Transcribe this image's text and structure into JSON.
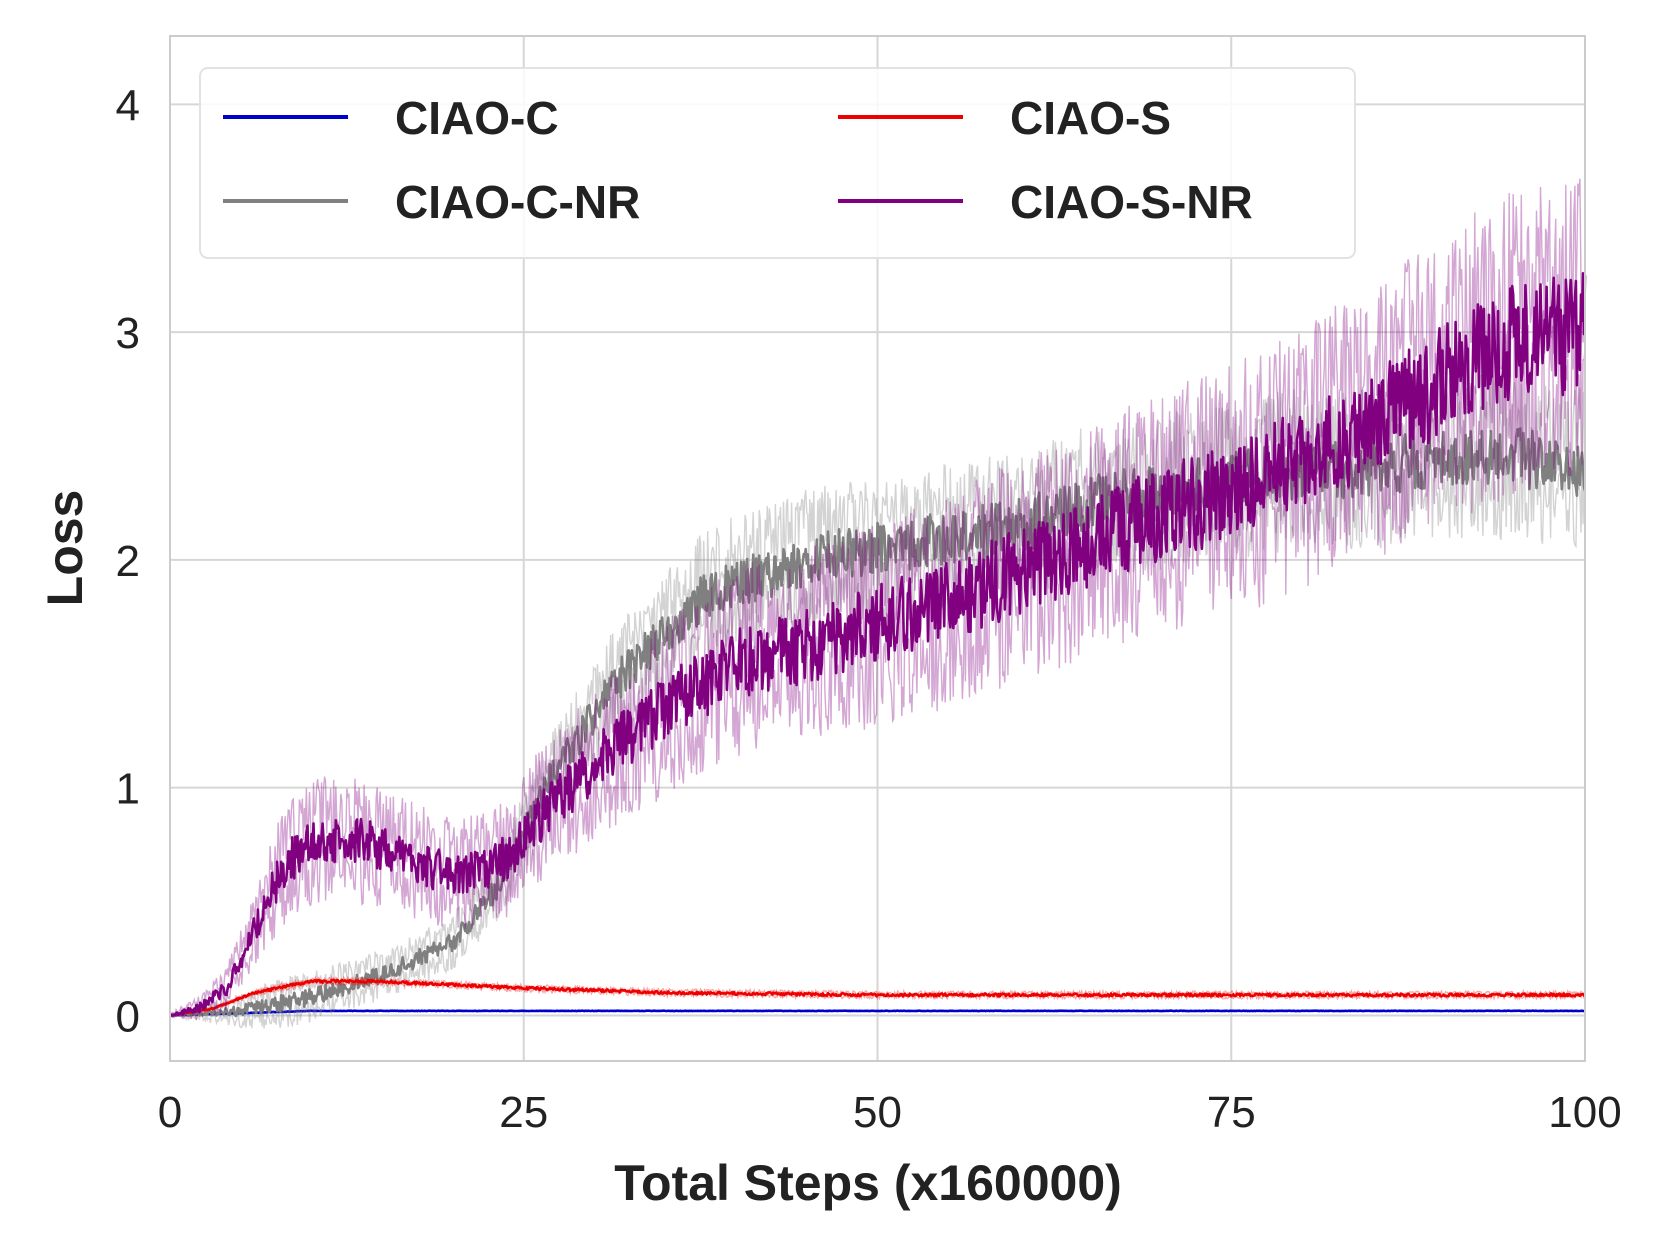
{
  "chart_data": {
    "type": "line",
    "title": "",
    "xlabel": "Total Steps (x160000)",
    "ylabel": "Loss",
    "xlim": [
      0,
      100
    ],
    "ylim": [
      -0.2,
      4.3
    ],
    "xticks": [
      0,
      25,
      50,
      75,
      100
    ],
    "yticks": [
      0,
      1,
      2,
      3,
      4
    ],
    "xtick_labels": [
      "0",
      "25",
      "50",
      "75",
      "100"
    ],
    "ytick_labels": [
      "0",
      "1",
      "2",
      "3",
      "4"
    ],
    "grid": true,
    "legend_position": "top-left",
    "series": [
      {
        "name": "CIAO-C",
        "color": "#0000cc",
        "x": [
          0,
          5,
          10,
          20,
          30,
          40,
          50,
          60,
          70,
          80,
          90,
          100
        ],
        "values": [
          0.0,
          0.01,
          0.02,
          0.02,
          0.02,
          0.02,
          0.02,
          0.02,
          0.02,
          0.02,
          0.02,
          0.02
        ],
        "noise": 0.002,
        "band": 0.003
      },
      {
        "name": "CIAO-S",
        "color": "#ee0000",
        "x": [
          0,
          3,
          6,
          10,
          14,
          18,
          25,
          35,
          50,
          60,
          75,
          90,
          100
        ],
        "values": [
          0.0,
          0.03,
          0.1,
          0.15,
          0.15,
          0.14,
          0.12,
          0.1,
          0.09,
          0.09,
          0.09,
          0.09,
          0.09
        ],
        "noise": 0.012,
        "band": 0.02
      },
      {
        "name": "CIAO-C-NR",
        "color": "#808080",
        "x": [
          0,
          5,
          10,
          15,
          20,
          23,
          27,
          32,
          38,
          45,
          50,
          55,
          60,
          65,
          70,
          75,
          80,
          85,
          90,
          95,
          100
        ],
        "values": [
          0.0,
          0.02,
          0.08,
          0.18,
          0.32,
          0.55,
          1.05,
          1.5,
          1.85,
          2.0,
          2.05,
          2.1,
          2.15,
          2.25,
          2.3,
          2.35,
          2.4,
          2.4,
          2.45,
          2.45,
          2.4
        ],
        "noise": 0.07,
        "band": 0.15
      },
      {
        "name": "CIAO-S-NR",
        "color": "#800080",
        "x": [
          0,
          2,
          4,
          6,
          8,
          10,
          12,
          14,
          16,
          18,
          20,
          22,
          24,
          26,
          30,
          35,
          40,
          45,
          50,
          55,
          60,
          65,
          70,
          75,
          80,
          85,
          90,
          95,
          100
        ],
        "values": [
          0.0,
          0.03,
          0.12,
          0.38,
          0.65,
          0.76,
          0.78,
          0.76,
          0.7,
          0.66,
          0.62,
          0.64,
          0.7,
          0.86,
          1.1,
          1.35,
          1.55,
          1.62,
          1.72,
          1.82,
          1.95,
          2.08,
          2.2,
          2.3,
          2.45,
          2.6,
          2.8,
          2.95,
          3.0
        ],
        "noise": 0.12,
        "band": 0.22
      }
    ]
  }
}
